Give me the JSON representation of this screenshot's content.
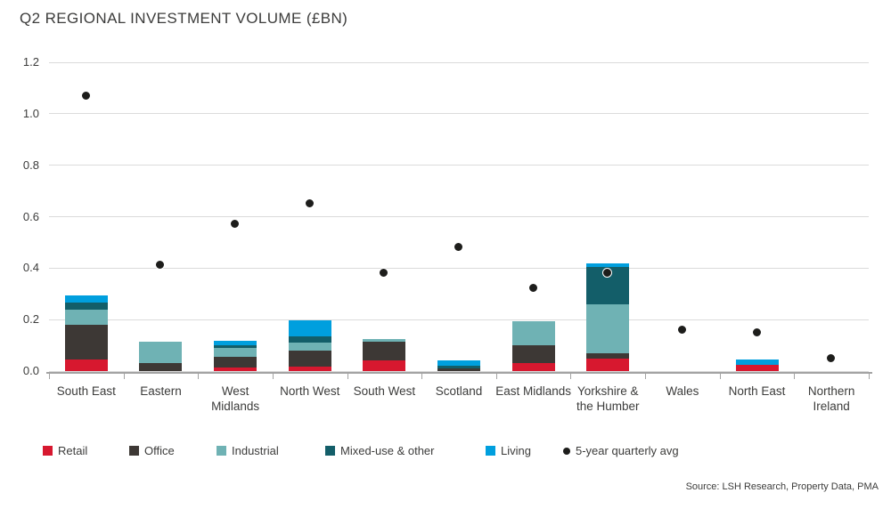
{
  "title": "Q2 REGIONAL INVESTMENT VOLUME (£BN)",
  "source": "Source: LSH Research, Property Data, PMA",
  "colors": {
    "text": "#3c3c3b",
    "grid": "#dbdbdb",
    "axis": "#a3a3a3",
    "dot": "#1d1d1b"
  },
  "chart_data": {
    "type": "bar",
    "stacked": true,
    "title": "Q2 REGIONAL INVESTMENT VOLUME (£BN)",
    "ylabel": "£bn",
    "ylim": [
      0,
      1.2
    ],
    "ytick_step": 0.2,
    "grid": true,
    "legend_position": "bottom",
    "categories": [
      "South East",
      "Eastern",
      "West Midlands",
      "North West",
      "South West",
      "Scotland",
      "East Midlands",
      "Yorkshire & the Humber",
      "Wales",
      "North East",
      "Northern Ireland"
    ],
    "series": [
      {
        "name": "Retail",
        "color": "#d7182f",
        "values": [
          0.045,
          0,
          0.015,
          0.017,
          0.042,
          0,
          0.03,
          0.05,
          0,
          0.025,
          0
        ]
      },
      {
        "name": "Office",
        "color": "#3d3835",
        "values": [
          0.135,
          0.03,
          0.04,
          0.063,
          0.071,
          0.01,
          0.07,
          0.02,
          0,
          0,
          0
        ]
      },
      {
        "name": "Industrial",
        "color": "#6fb2b4",
        "values": [
          0.06,
          0.085,
          0.035,
          0.031,
          0.012,
          0,
          0.095,
          0.19,
          0,
          0,
          0
        ]
      },
      {
        "name": "Mixed-use & other",
        "color": "#135e69",
        "values": [
          0.025,
          0,
          0.012,
          0.024,
          0,
          0.012,
          0,
          0.145,
          0,
          0,
          0
        ]
      },
      {
        "name": "Living",
        "color": "#009fde",
        "values": [
          0.03,
          0,
          0.015,
          0.062,
          0,
          0.018,
          0,
          0.015,
          0,
          0.02,
          0
        ]
      }
    ],
    "dot_series": {
      "name": "5-year quarterly avg",
      "color": "#1d1d1b",
      "values": [
        1.07,
        0.41,
        0.57,
        0.65,
        0.38,
        0.48,
        0.32,
        0.38,
        0.16,
        0.15,
        0.05
      ]
    }
  }
}
